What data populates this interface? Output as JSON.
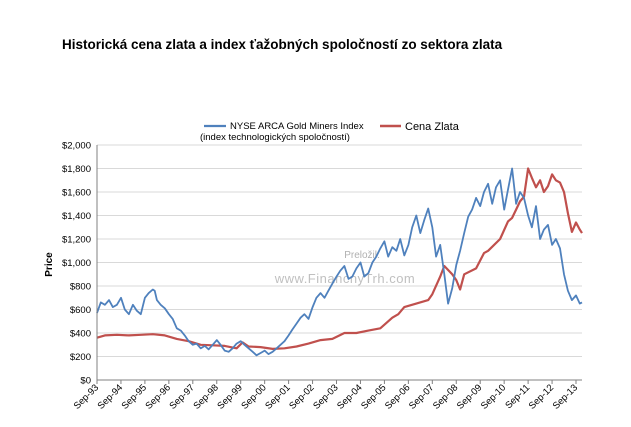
{
  "title": "Historická cena zlata a index ťažobných spoločností zo sektora zlata",
  "watermark": {
    "line1": "Preložil:",
    "line2": "www.FinancnyTrh.com"
  },
  "chart_data": {
    "type": "line",
    "ylabel": "Price",
    "ylim": [
      0,
      2000
    ],
    "yticks": [
      0,
      200,
      400,
      600,
      800,
      1000,
      1200,
      1400,
      1600,
      1800,
      2000
    ],
    "ytick_labels": [
      "$0",
      "$200",
      "$400",
      "$600",
      "$800",
      "$1,000",
      "$1,200",
      "$1,400",
      "$1,600",
      "$1,800",
      "$2,000"
    ],
    "xlim": [
      1993.67,
      2013.92
    ],
    "xticks": [
      1993.67,
      1994.67,
      1995.67,
      1996.67,
      1997.67,
      1998.67,
      1999.67,
      2000.67,
      2001.67,
      2002.67,
      2003.67,
      2004.67,
      2005.67,
      2006.67,
      2007.67,
      2008.67,
      2009.67,
      2010.67,
      2011.67,
      2012.67,
      2013.67
    ],
    "xtick_labels": [
      "Sep-93",
      "Sep-94",
      "Sep-95",
      "Sep-96",
      "Sep-97",
      "Sep-98",
      "Sep-99",
      "Sep-00",
      "Sep-01",
      "Sep-02",
      "Sep-03",
      "Sep-04",
      "Sep-05",
      "Sep-06",
      "Sep-07",
      "Sep-08",
      "Sep-09",
      "Sep-10",
      "Sep-11",
      "Sep-12",
      "Sep-13"
    ],
    "grid": "horizontal",
    "legend_position": "top",
    "series": [
      {
        "name": "NYSE ARCA Gold Miners Index",
        "name_line2": "(index technologických spoločností)",
        "color": "#4f81bd",
        "x": [
          1993.67,
          1993.83,
          1994.0,
          1994.17,
          1994.33,
          1994.5,
          1994.67,
          1994.83,
          1995.0,
          1995.17,
          1995.33,
          1995.5,
          1995.67,
          1995.83,
          1996.0,
          1996.08,
          1996.17,
          1996.33,
          1996.5,
          1996.67,
          1996.83,
          1997.0,
          1997.17,
          1997.33,
          1997.5,
          1997.67,
          1997.83,
          1998.0,
          1998.17,
          1998.33,
          1998.5,
          1998.67,
          1998.83,
          1999.0,
          1999.17,
          1999.33,
          1999.5,
          1999.67,
          1999.83,
          2000.0,
          2000.17,
          2000.33,
          2000.5,
          2000.67,
          2000.83,
          2001.0,
          2001.17,
          2001.33,
          2001.5,
          2001.67,
          2001.83,
          2002.0,
          2002.17,
          2002.33,
          2002.5,
          2002.67,
          2002.83,
          2003.0,
          2003.17,
          2003.33,
          2003.5,
          2003.67,
          2003.83,
          2004.0,
          2004.17,
          2004.33,
          2004.5,
          2004.67,
          2004.83,
          2005.0,
          2005.17,
          2005.33,
          2005.5,
          2005.67,
          2005.83,
          2006.0,
          2006.17,
          2006.33,
          2006.5,
          2006.67,
          2006.83,
          2007.0,
          2007.17,
          2007.33,
          2007.5,
          2007.67,
          2007.83,
          2008.0,
          2008.17,
          2008.33,
          2008.5,
          2008.67,
          2008.83,
          2009.0,
          2009.17,
          2009.33,
          2009.5,
          2009.67,
          2009.83,
          2010.0,
          2010.17,
          2010.33,
          2010.5,
          2010.67,
          2010.83,
          2011.0,
          2011.17,
          2011.33,
          2011.5,
          2011.67,
          2011.83,
          2012.0,
          2012.17,
          2012.33,
          2012.5,
          2012.67,
          2012.83,
          2013.0,
          2013.17,
          2013.33,
          2013.5,
          2013.67,
          2013.83,
          2013.92
        ],
        "y": [
          570,
          660,
          640,
          680,
          620,
          640,
          700,
          600,
          560,
          640,
          590,
          560,
          700,
          740,
          770,
          760,
          680,
          640,
          610,
          560,
          520,
          440,
          420,
          380,
          330,
          300,
          310,
          270,
          290,
          260,
          300,
          340,
          300,
          250,
          240,
          270,
          310,
          330,
          300,
          270,
          240,
          210,
          230,
          250,
          220,
          240,
          270,
          300,
          330,
          380,
          430,
          480,
          530,
          560,
          520,
          620,
          700,
          740,
          700,
          760,
          820,
          880,
          930,
          970,
          860,
          880,
          950,
          1000,
          880,
          910,
          1000,
          1050,
          1120,
          1180,
          1050,
          1130,
          1100,
          1200,
          1060,
          1150,
          1300,
          1400,
          1250,
          1360,
          1460,
          1300,
          1050,
          1150,
          900,
          650,
          780,
          980,
          1100,
          1250,
          1390,
          1450,
          1550,
          1480,
          1600,
          1670,
          1500,
          1640,
          1700,
          1450,
          1620,
          1800,
          1500,
          1600,
          1550,
          1400,
          1300,
          1480,
          1200,
          1280,
          1320,
          1150,
          1200,
          1120,
          900,
          760,
          680,
          720,
          650,
          660
        ]
      },
      {
        "name": "Cena Zlata",
        "color": "#c0504d",
        "x": [
          1993.67,
          1994.0,
          1994.5,
          1995.0,
          1995.5,
          1996.0,
          1996.5,
          1997.0,
          1997.5,
          1998.0,
          1998.5,
          1999.0,
          1999.5,
          1999.75,
          2000.0,
          2000.5,
          2001.0,
          2001.5,
          2002.0,
          2002.5,
          2003.0,
          2003.5,
          2004.0,
          2004.5,
          2005.0,
          2005.5,
          2006.0,
          2006.25,
          2006.5,
          2007.0,
          2007.5,
          2007.67,
          2008.0,
          2008.17,
          2008.5,
          2008.67,
          2008.83,
          2009.0,
          2009.5,
          2009.83,
          2010.0,
          2010.5,
          2010.83,
          2011.0,
          2011.17,
          2011.33,
          2011.5,
          2011.67,
          2011.83,
          2012.0,
          2012.17,
          2012.33,
          2012.5,
          2012.67,
          2012.83,
          2013.0,
          2013.17,
          2013.33,
          2013.5,
          2013.67,
          2013.83,
          2013.92
        ],
        "y": [
          360,
          380,
          385,
          380,
          385,
          390,
          380,
          350,
          330,
          300,
          295,
          290,
          270,
          320,
          285,
          280,
          265,
          270,
          285,
          310,
          340,
          350,
          400,
          400,
          420,
          440,
          530,
          560,
          620,
          650,
          680,
          730,
          880,
          970,
          900,
          850,
          770,
          900,
          950,
          1080,
          1100,
          1200,
          1350,
          1380,
          1450,
          1520,
          1560,
          1800,
          1720,
          1640,
          1700,
          1600,
          1650,
          1750,
          1700,
          1680,
          1600,
          1420,
          1260,
          1340,
          1280,
          1250
        ]
      }
    ]
  }
}
